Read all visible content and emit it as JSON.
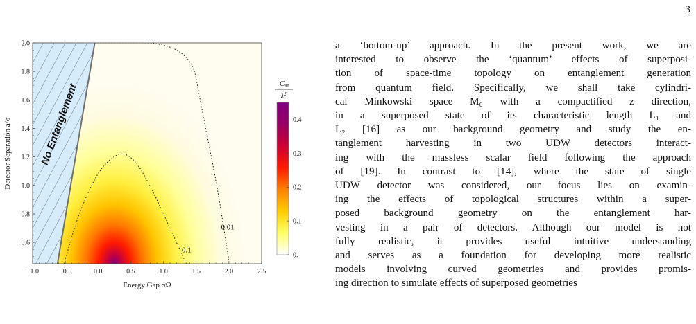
{
  "page": {
    "number": "3"
  },
  "chart_data": {
    "type": "heatmap",
    "xlabel": "Energy Gap σΩ",
    "ylabel": "Detector Separation a/σ",
    "xlim": [
      -1.0,
      2.5
    ],
    "ylim": [
      0.45,
      2.0
    ],
    "x_ticks": [
      "−1.0",
      "−0.5",
      "0.0",
      "0.5",
      "1.0",
      "1.5",
      "2.0",
      "2.5"
    ],
    "y_ticks": [
      "0.6",
      "0.8",
      "1.0",
      "1.2",
      "1.4",
      "1.6",
      "1.8",
      "2.0"
    ],
    "colorbar": {
      "label_num": "C",
      "label_num_sub": "M",
      "label_den": "λ",
      "label_den_sup": "2",
      "min": 0.0,
      "max": 0.45,
      "ticks": [
        "0.",
        "0.1",
        "0.2",
        "0.3",
        "0.4"
      ],
      "colors": [
        "#ffffff",
        "#ffff66",
        "#ffcc00",
        "#ff8000",
        "#ff1a00",
        "#cc0033",
        "#990066",
        "#800080"
      ]
    },
    "region_label": "No Entanglement",
    "contour_labels": [
      "0.1",
      "0.01"
    ],
    "boundary": [
      [
        -0.62,
        0.45
      ],
      [
        -0.05,
        2.0
      ]
    ],
    "contours": [
      {
        "label": "0.1",
        "points": [
          [
            -0.52,
            0.45
          ],
          [
            -0.3,
            0.8
          ],
          [
            0.0,
            1.1
          ],
          [
            0.25,
            1.21
          ],
          [
            0.4,
            1.23
          ],
          [
            0.6,
            1.16
          ],
          [
            0.85,
            0.95
          ],
          [
            1.1,
            0.7
          ],
          [
            1.35,
            0.45
          ]
        ]
      },
      {
        "label": "0.01",
        "points": [
          [
            -0.05,
            2.0
          ],
          [
            1.4,
            2.0
          ],
          [
            1.6,
            1.5
          ],
          [
            1.82,
            1.0
          ],
          [
            2.0,
            0.47
          ]
        ]
      }
    ]
  },
  "body_lines": [
    "a ‘bottom-up’ approach.  In the present work, we are",
    "interested to observe the ‘quantum’ effects of superposi-",
    "tion of space-time topology on entanglement generation",
    "from quantum field. Specifically, we shall take cylindri-",
    "cal Minkowski space M₀ with a compactified z direction,",
    "in a superposed state of its characteristic length L₁ and",
    "L₂ [16] as our background geometry and study the en-",
    "tanglement harvesting in two UDW detectors interact-",
    "ing with the massless scalar field following the approach",
    "of [19].  In contrast to [14], where the state of single",
    "UDW detector was considered, our focus lies on examin-",
    "ing the effects of topological structures within a super-",
    "posed background geometry on the entanglement har-",
    "vesting in a pair of detectors. Although our model is not",
    "fully realistic, it provides useful intuitive understanding",
    "and serves as a foundation for developing more realistic",
    "models involving curved geometries and provides promis-",
    "ing direction to simulate effects of superposed geometries"
  ]
}
